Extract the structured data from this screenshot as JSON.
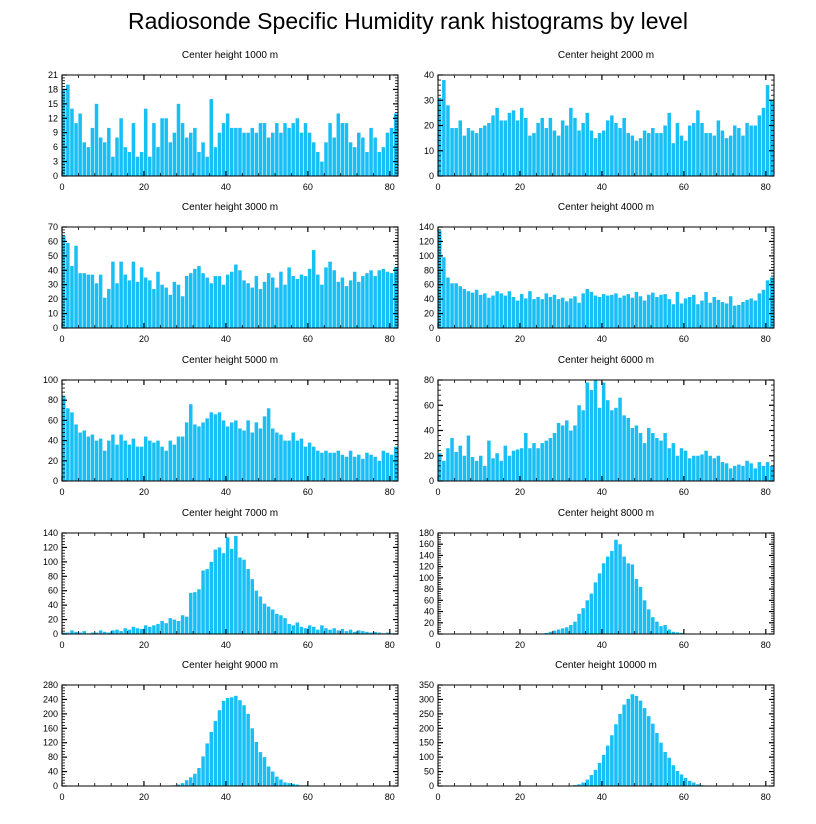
{
  "title": "Radiosonde Specific Humidity rank histograms by level",
  "colors": {
    "bar": "#18BFF5",
    "axis": "#000000"
  },
  "chart_data": [
    {
      "type": "bar",
      "title": "Center height 1000 m",
      "xlabel": "",
      "ylabel": "",
      "xlim": [
        0,
        82
      ],
      "xticks": [
        0,
        20,
        40,
        60,
        80
      ],
      "ylim": [
        0,
        21
      ],
      "yticks": [
        0,
        3,
        6,
        9,
        12,
        15,
        18,
        21
      ],
      "values": [
        18,
        19,
        14,
        11,
        13,
        7,
        6,
        10,
        15,
        8,
        7,
        10,
        4,
        8,
        12,
        6,
        5,
        11,
        4,
        5,
        14,
        4,
        11,
        6,
        12,
        12,
        7,
        9,
        15,
        11,
        8,
        9,
        10,
        5,
        7,
        4,
        16,
        6,
        9,
        11,
        13,
        10,
        10,
        10,
        9,
        9,
        10,
        9,
        11,
        11,
        8,
        9,
        11,
        9,
        11,
        10,
        11,
        12,
        9,
        11,
        9,
        7,
        5,
        3,
        7,
        11,
        8,
        13,
        11,
        11,
        7,
        6,
        9,
        8,
        5,
        10,
        8,
        5,
        6,
        9,
        10,
        13
      ]
    },
    {
      "type": "bar",
      "title": "Center height 2000 m",
      "xlabel": "",
      "ylabel": "",
      "xlim": [
        0,
        82
      ],
      "xticks": [
        0,
        20,
        40,
        60,
        80
      ],
      "ylim": [
        0,
        40
      ],
      "yticks": [
        0,
        10,
        20,
        30,
        40
      ],
      "values": [
        31,
        38,
        28,
        19,
        19,
        22,
        16,
        19,
        18,
        17,
        19,
        20,
        21,
        24,
        27,
        22,
        22,
        25,
        26,
        22,
        27,
        23,
        16,
        17,
        21,
        23,
        19,
        23,
        18,
        16,
        22,
        20,
        27,
        23,
        18,
        21,
        25,
        18,
        15,
        17,
        18,
        22,
        24,
        21,
        19,
        23,
        17,
        16,
        14,
        15,
        18,
        17,
        19,
        17,
        17,
        20,
        25,
        13,
        21,
        16,
        14,
        20,
        21,
        26,
        21,
        17,
        17,
        16,
        22,
        18,
        15,
        16,
        20,
        19,
        16,
        21,
        20,
        20,
        24,
        27,
        36,
        30
      ]
    },
    {
      "type": "bar",
      "title": "Center height 3000 m",
      "xlabel": "",
      "ylabel": "",
      "xlim": [
        0,
        82
      ],
      "xticks": [
        0,
        20,
        40,
        60,
        80
      ],
      "ylim": [
        0,
        70
      ],
      "yticks": [
        0,
        10,
        20,
        30,
        40,
        50,
        60,
        70
      ],
      "values": [
        64,
        59,
        43,
        57,
        38,
        38,
        37,
        37,
        31,
        37,
        21,
        27,
        46,
        31,
        46,
        37,
        33,
        46,
        32,
        42,
        35,
        33,
        27,
        39,
        30,
        28,
        23,
        32,
        30,
        22,
        36,
        38,
        41,
        43,
        38,
        35,
        31,
        36,
        36,
        30,
        37,
        39,
        44,
        40,
        33,
        31,
        28,
        36,
        27,
        32,
        38,
        35,
        28,
        39,
        30,
        42,
        36,
        34,
        37,
        36,
        41,
        54,
        37,
        30,
        42,
        46,
        40,
        32,
        35,
        29,
        33,
        39,
        32,
        36,
        38,
        40,
        36,
        40,
        41,
        39,
        38,
        42
      ]
    },
    {
      "type": "bar",
      "title": "Center height 4000 m",
      "xlabel": "",
      "ylabel": "",
      "xlim": [
        0,
        82
      ],
      "xticks": [
        0,
        20,
        40,
        60,
        80
      ],
      "ylim": [
        0,
        140
      ],
      "yticks": [
        0,
        20,
        40,
        60,
        80,
        100,
        120,
        140
      ],
      "values": [
        135,
        98,
        70,
        62,
        62,
        58,
        54,
        51,
        49,
        53,
        46,
        48,
        42,
        45,
        51,
        48,
        45,
        51,
        43,
        38,
        47,
        41,
        51,
        40,
        43,
        40,
        48,
        43,
        46,
        40,
        42,
        37,
        41,
        44,
        35,
        48,
        54,
        50,
        45,
        43,
        47,
        45,
        46,
        48,
        42,
        45,
        47,
        42,
        50,
        44,
        38,
        46,
        49,
        43,
        46,
        47,
        40,
        33,
        50,
        34,
        41,
        43,
        46,
        33,
        38,
        50,
        35,
        43,
        39,
        36,
        34,
        44,
        31,
        32,
        36,
        39,
        41,
        38,
        48,
        53,
        66,
        70
      ]
    },
    {
      "type": "bar",
      "title": "Center height 5000 m",
      "xlabel": "",
      "ylabel": "",
      "xlim": [
        0,
        82
      ],
      "xticks": [
        0,
        20,
        40,
        60,
        80
      ],
      "ylim": [
        0,
        100
      ],
      "yticks": [
        0,
        20,
        40,
        60,
        80,
        100
      ],
      "values": [
        84,
        72,
        68,
        56,
        48,
        50,
        44,
        46,
        40,
        42,
        30,
        40,
        46,
        36,
        46,
        40,
        36,
        42,
        34,
        34,
        44,
        40,
        38,
        40,
        34,
        30,
        40,
        36,
        44,
        44,
        58,
        76,
        56,
        54,
        58,
        62,
        68,
        66,
        68,
        60,
        54,
        58,
        60,
        52,
        50,
        60,
        48,
        58,
        52,
        64,
        72,
        52,
        48,
        46,
        40,
        40,
        48,
        40,
        42,
        34,
        38,
        34,
        30,
        28,
        30,
        28,
        28,
        30,
        26,
        24,
        30,
        24,
        26,
        22,
        28,
        26,
        24,
        20,
        30,
        28,
        26,
        34
      ]
    },
    {
      "type": "bar",
      "title": "Center height 6000 m",
      "xlabel": "",
      "ylabel": "",
      "xlim": [
        0,
        82
      ],
      "xticks": [
        0,
        20,
        40,
        60,
        80
      ],
      "ylim": [
        0,
        80
      ],
      "yticks": [
        0,
        20,
        40,
        60,
        80
      ],
      "values": [
        22,
        16,
        26,
        34,
        23,
        28,
        20,
        36,
        19,
        16,
        20,
        12,
        32,
        18,
        22,
        16,
        28,
        20,
        24,
        25,
        26,
        38,
        26,
        30,
        26,
        30,
        32,
        34,
        38,
        46,
        44,
        48,
        40,
        44,
        60,
        56,
        78,
        72,
        80,
        58,
        78,
        64,
        56,
        58,
        66,
        52,
        50,
        42,
        44,
        38,
        30,
        42,
        38,
        34,
        32,
        38,
        26,
        30,
        20,
        26,
        24,
        18,
        20,
        20,
        21,
        24,
        20,
        18,
        20,
        15,
        14,
        10,
        12,
        13,
        12,
        16,
        14,
        10,
        15,
        12,
        15,
        12
      ]
    },
    {
      "type": "bar",
      "title": "Center height 7000 m",
      "xlabel": "",
      "ylabel": "",
      "xlim": [
        0,
        82
      ],
      "xticks": [
        0,
        20,
        40,
        60,
        80
      ],
      "ylim": [
        0,
        140
      ],
      "yticks": [
        0,
        20,
        40,
        60,
        80,
        100,
        120,
        140
      ],
      "values": [
        2,
        2,
        5,
        3,
        2,
        4,
        1,
        2,
        2,
        5,
        3,
        2,
        5,
        6,
        4,
        8,
        6,
        10,
        8,
        7,
        12,
        10,
        12,
        14,
        18,
        15,
        22,
        20,
        18,
        26,
        24,
        57,
        58,
        62,
        88,
        90,
        100,
        117,
        120,
        112,
        134,
        118,
        136,
        106,
        103,
        90,
        76,
        60,
        52,
        42,
        38,
        34,
        28,
        26,
        22,
        14,
        12,
        16,
        10,
        8,
        12,
        10,
        6,
        12,
        8,
        6,
        8,
        5,
        7,
        4,
        6,
        3,
        5,
        4,
        3,
        2,
        3,
        2,
        1,
        2,
        1,
        1
      ]
    },
    {
      "type": "bar",
      "title": "Center height 8000 m",
      "xlabel": "",
      "ylabel": "",
      "xlim": [
        0,
        82
      ],
      "xticks": [
        0,
        20,
        40,
        60,
        80
      ],
      "ylim": [
        0,
        180
      ],
      "yticks": [
        0,
        20,
        40,
        60,
        80,
        100,
        120,
        140,
        160,
        180
      ],
      "values": [
        0,
        0,
        0,
        0,
        0,
        0,
        0,
        0,
        0,
        0,
        0,
        0,
        0,
        0,
        0,
        0,
        0,
        0,
        0,
        0,
        0,
        0,
        0,
        0,
        1,
        1,
        2,
        4,
        6,
        8,
        10,
        12,
        16,
        22,
        36,
        46,
        60,
        72,
        92,
        108,
        126,
        138,
        148,
        168,
        160,
        138,
        126,
        124,
        98,
        84,
        60,
        44,
        30,
        22,
        14,
        16,
        8,
        4,
        3,
        2,
        1,
        1,
        0,
        0,
        0,
        0,
        0,
        0,
        0,
        0,
        0,
        0,
        0,
        0,
        0,
        0,
        0,
        0,
        0,
        0,
        0,
        0
      ]
    },
    {
      "type": "bar",
      "title": "Center height 9000 m",
      "xlabel": "",
      "ylabel": "",
      "xlim": [
        0,
        82
      ],
      "xticks": [
        0,
        20,
        40,
        60,
        80
      ],
      "ylim": [
        0,
        280
      ],
      "yticks": [
        0,
        40,
        80,
        120,
        160,
        200,
        240,
        280
      ],
      "values": [
        0,
        0,
        0,
        0,
        0,
        0,
        0,
        0,
        0,
        0,
        0,
        0,
        0,
        0,
        0,
        0,
        0,
        0,
        0,
        0,
        0,
        0,
        0,
        0,
        0,
        0,
        0,
        2,
        4,
        8,
        16,
        24,
        34,
        50,
        82,
        118,
        150,
        180,
        210,
        236,
        244,
        246,
        250,
        238,
        224,
        200,
        160,
        122,
        94,
        80,
        54,
        40,
        26,
        18,
        10,
        8,
        6,
        4,
        2,
        2,
        1,
        1,
        0,
        0,
        0,
        0,
        0,
        0,
        0,
        0,
        0,
        0,
        0,
        0,
        0,
        0,
        0,
        0,
        0,
        0,
        0,
        0
      ]
    },
    {
      "type": "bar",
      "title": "Center height 10000 m",
      "xlabel": "",
      "ylabel": "",
      "xlim": [
        0,
        82
      ],
      "xticks": [
        0,
        20,
        40,
        60,
        80
      ],
      "ylim": [
        0,
        350
      ],
      "yticks": [
        0,
        50,
        100,
        150,
        200,
        250,
        300,
        350
      ],
      "values": [
        0,
        0,
        0,
        0,
        0,
        0,
        0,
        0,
        0,
        0,
        0,
        0,
        0,
        0,
        0,
        0,
        0,
        0,
        0,
        0,
        0,
        0,
        0,
        0,
        0,
        0,
        0,
        0,
        0,
        0,
        0,
        0,
        1,
        3,
        6,
        12,
        22,
        38,
        56,
        80,
        108,
        140,
        176,
        214,
        250,
        282,
        302,
        318,
        312,
        296,
        270,
        242,
        216,
        184,
        150,
        118,
        98,
        72,
        52,
        40,
        28,
        18,
        12,
        6,
        3,
        2,
        1,
        0,
        0,
        0,
        0,
        0,
        0,
        0,
        0,
        0,
        0,
        0,
        0,
        0,
        0,
        0
      ]
    }
  ]
}
